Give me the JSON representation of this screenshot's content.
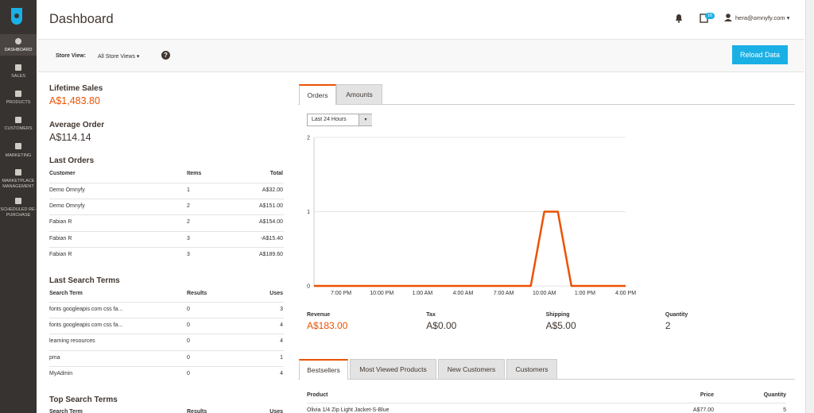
{
  "sidebar": {
    "items": [
      "DASHBOARD",
      "SALES",
      "PRODUCTS",
      "CUSTOMERS",
      "MARKETING",
      "MARKETPLACE MANAGEMENT",
      "SCHEDULED RE-PURCHASE"
    ]
  },
  "header": {
    "title": "Dashboard",
    "badge": "16",
    "user": "hera@omnyfy.com"
  },
  "store_view": {
    "label": "Store View:",
    "value": "All Store Views",
    "button": "Reload Data"
  },
  "lifetime_sales": {
    "label": "Lifetime Sales",
    "value": "A$1,483.80"
  },
  "average_order": {
    "label": "Average Order",
    "value": "A$114.14"
  },
  "last_orders": {
    "title": "Last Orders",
    "columns": [
      "Customer",
      "Items",
      "Total"
    ],
    "rows": [
      [
        "Demo Omnyfy",
        1,
        "A$32.00"
      ],
      [
        "Demo Omnyfy",
        2,
        "A$151.00"
      ],
      [
        "Fabian R",
        2,
        "A$154.00"
      ],
      [
        "Fabian R",
        3,
        "-A$15.40"
      ],
      [
        "Fabian R",
        3,
        "A$189.60"
      ]
    ]
  },
  "last_search_terms": {
    "title": "Last Search Terms",
    "columns": [
      "Search Term",
      "Results",
      "Uses"
    ],
    "rows": [
      [
        "fonts googleapis com css fa...",
        0,
        3
      ],
      [
        "fonts googleapis com css fa...",
        0,
        4
      ],
      [
        "learning resources",
        0,
        4
      ],
      [
        "pma",
        0,
        1
      ],
      [
        "MyAdmin",
        0,
        4
      ]
    ]
  },
  "top_search_terms": {
    "title": "Top Search Terms",
    "columns": [
      "Search Term",
      "Results",
      "Uses"
    ]
  },
  "chart_tabs": [
    "Orders",
    "Amounts"
  ],
  "period": "Last 24 Hours",
  "chart_data": {
    "type": "line",
    "categories": [
      null,
      null,
      "7:00 PM",
      null,
      null,
      "10:00 PM",
      null,
      null,
      "1:00 AM",
      null,
      null,
      "4:00 AM",
      null,
      null,
      "7:00 AM",
      null,
      null,
      "10:00 AM",
      null,
      null,
      "1:00 PM",
      null,
      null,
      "4:00 PM"
    ],
    "values": [
      0,
      0,
      0,
      0,
      0,
      0,
      0,
      0,
      0,
      0,
      0,
      0,
      0,
      0,
      0,
      0,
      0,
      1,
      1,
      0,
      0,
      0,
      0,
      0
    ],
    "color": "#eb5202",
    "ylim": [
      0,
      2
    ],
    "yticks": [
      0,
      1,
      2
    ],
    "grid": true
  },
  "totals": [
    {
      "label": "Revenue",
      "value": "A$183.00"
    },
    {
      "label": "Tax",
      "value": "A$0.00"
    },
    {
      "label": "Shipping",
      "value": "A$5.00"
    },
    {
      "label": "Quantity",
      "value": 2
    }
  ],
  "product_tabs": [
    "Bestsellers",
    "Most Viewed Products",
    "New Customers",
    "Customers"
  ],
  "bestsellers": {
    "columns": [
      "Product",
      "Price",
      "Quantity"
    ],
    "rows": [
      [
        "Olivia 1/4 Zip Light Jacket-S-Blue",
        "A$77.00",
        5
      ]
    ]
  }
}
